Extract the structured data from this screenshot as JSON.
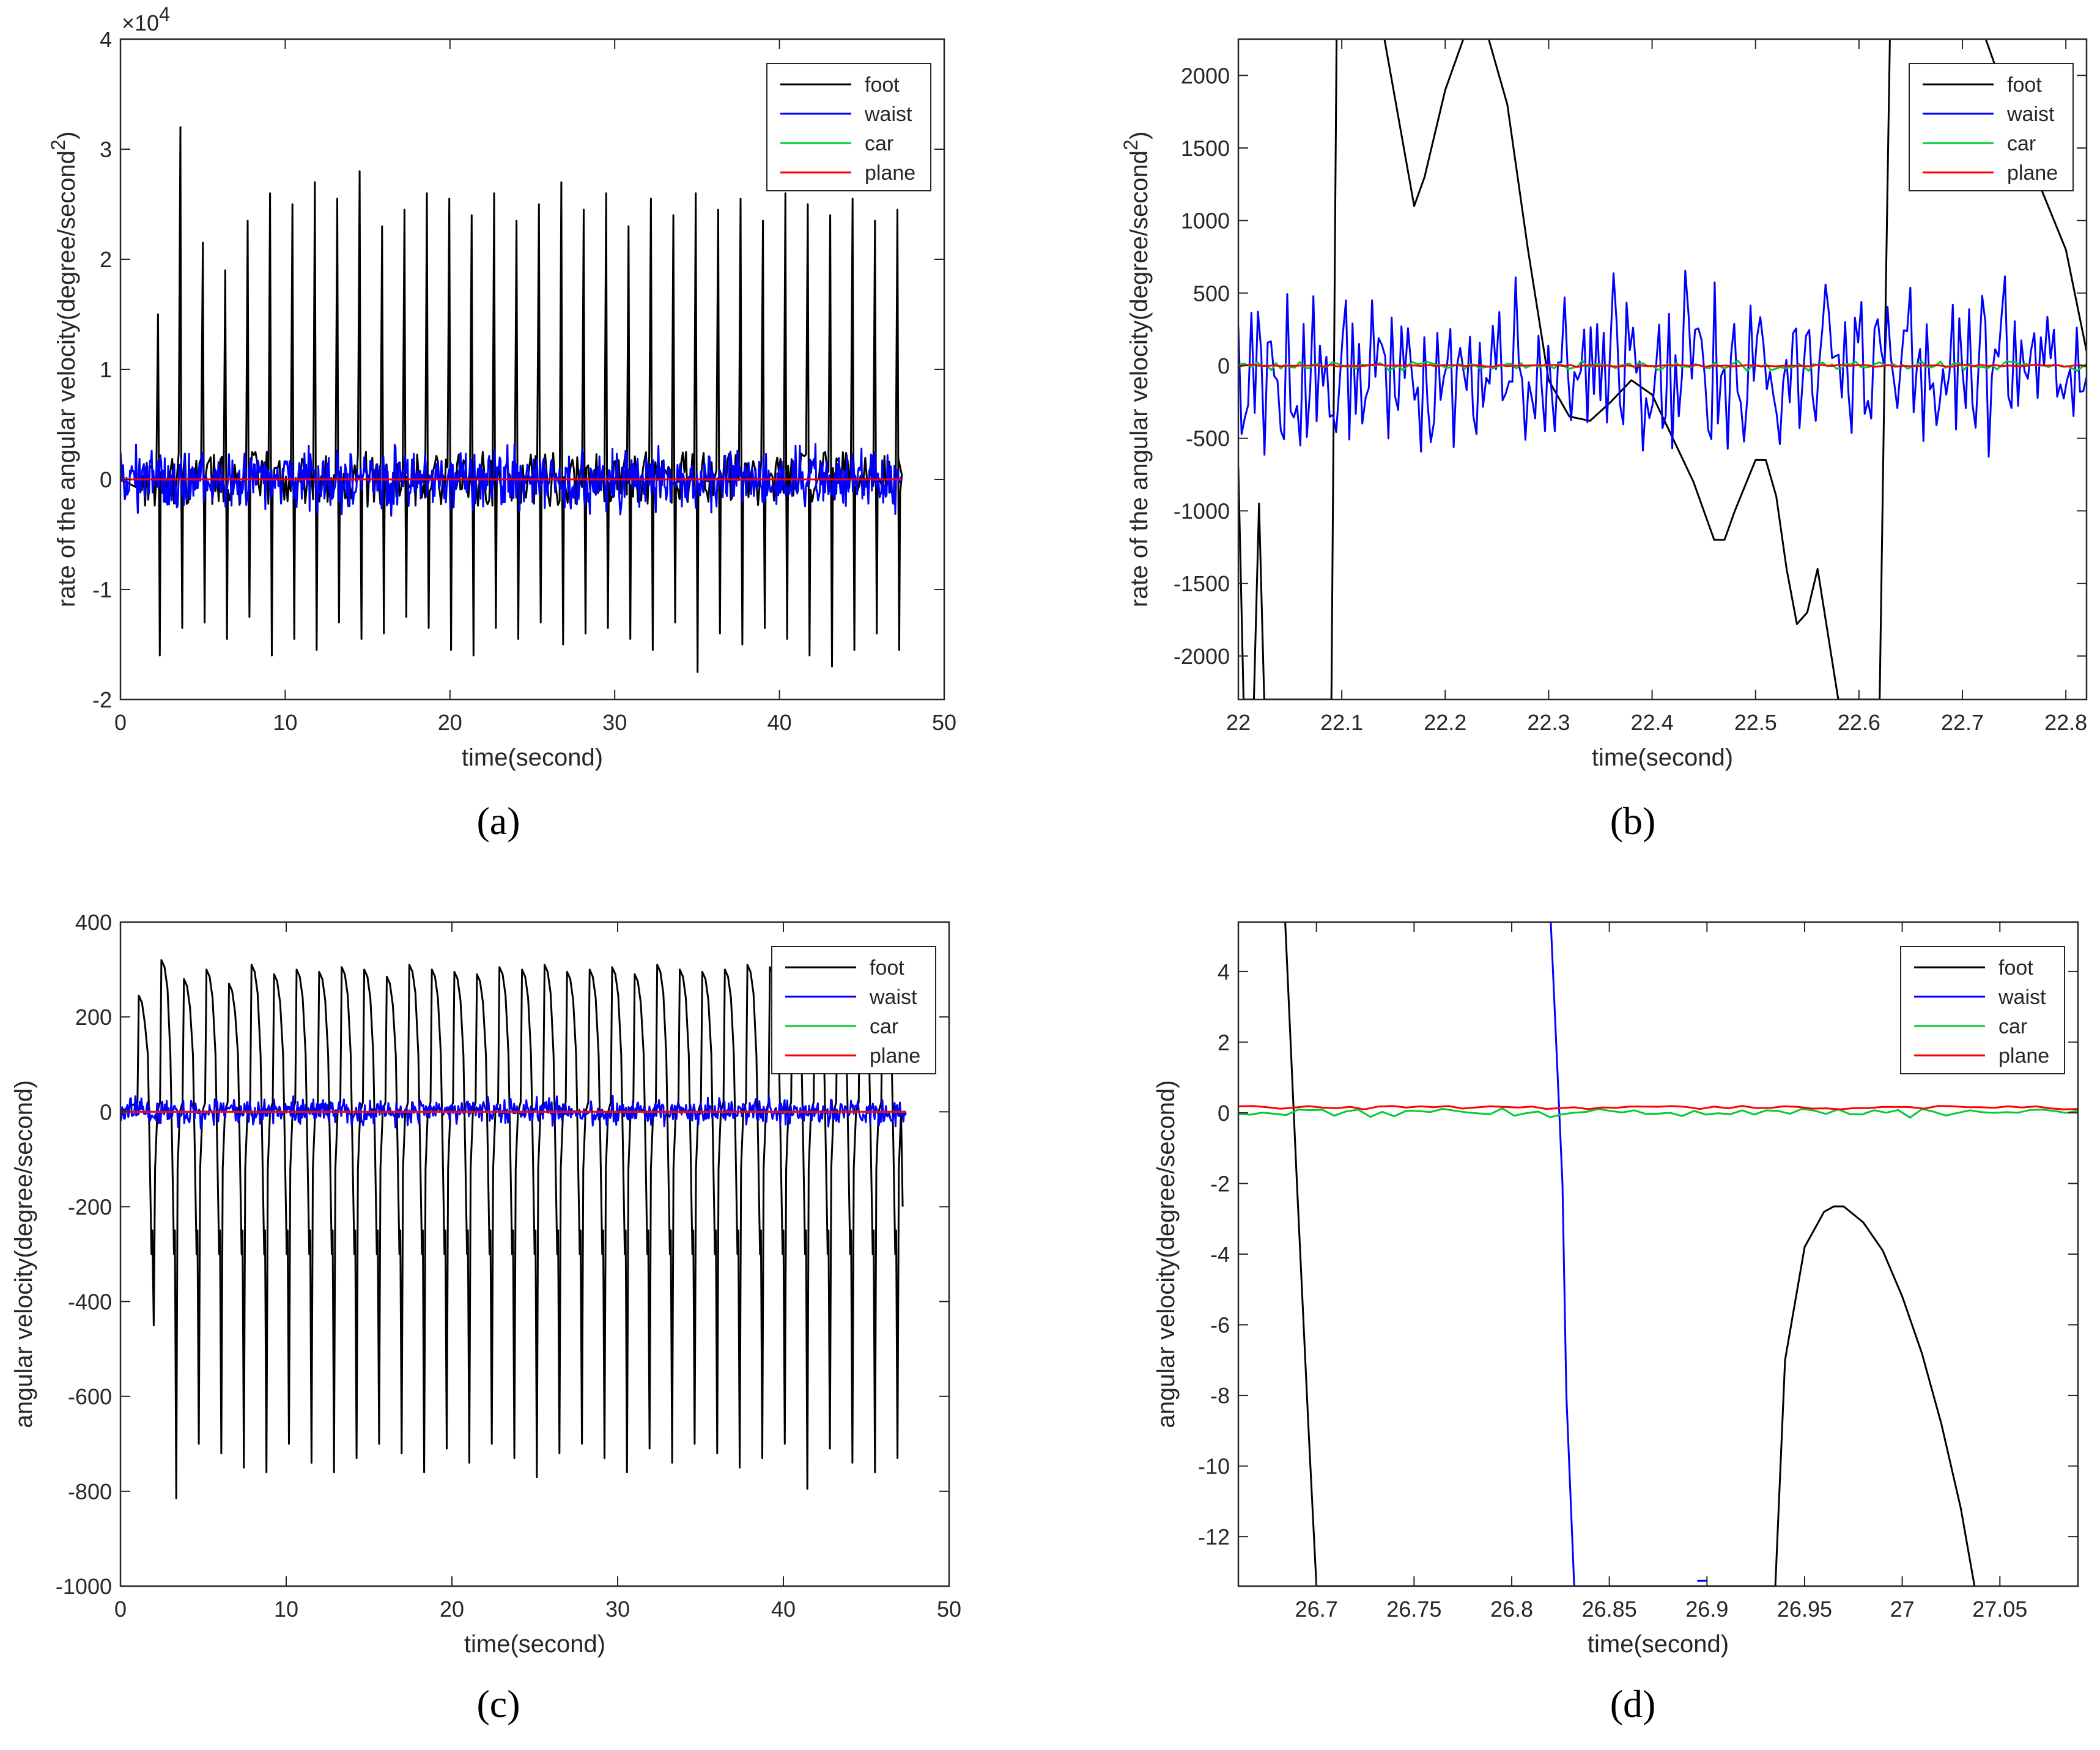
{
  "chart_data": [
    {
      "id": "a",
      "type": "line",
      "caption": "(a)",
      "ylabel": "rate of the angular velocity(degree/second",
      "ylabel_superscript": "2",
      "ylabel_close": ")",
      "xlabel": "time(second)",
      "exponent_base": "×10",
      "exponent_power": "4",
      "xlim": [
        0,
        50
      ],
      "ylim": [
        -2,
        4
      ],
      "xticks": [
        0,
        10,
        20,
        30,
        40,
        50
      ],
      "yticks": [
        -2,
        -1,
        0,
        1,
        2,
        3,
        4
      ],
      "xtick_labels": [
        "0",
        "10",
        "20",
        "30",
        "40",
        "50"
      ],
      "ytick_labels": [
        "-2",
        "-1",
        "0",
        "1",
        "2",
        "3",
        "4"
      ],
      "legend": [
        "foot",
        "waist",
        "car",
        "plane"
      ],
      "legend_position": "top-right",
      "series": [
        {
          "name": "foot",
          "color": "#000000",
          "pattern": {
            "kind": "spikes",
            "t0": 1.3,
            "period": 1.36,
            "t_end": 47.2,
            "base_noise": 0.25,
            "peaks": [
              1.5,
              3.2,
              2.15,
              1.9,
              2.35,
              2.6,
              2.5,
              2.7,
              2.55,
              2.8,
              2.3,
              2.45,
              2.6,
              2.55,
              2.4,
              2.6,
              2.35,
              2.5,
              2.7,
              2.45,
              2.6,
              2.3,
              2.55,
              2.4,
              2.6,
              2.45,
              2.55,
              2.35,
              2.6,
              2.5,
              2.4,
              2.55,
              2.35,
              2.45,
              2.3
            ],
            "troughs": [
              -1.6,
              -1.35,
              -1.3,
              -1.45,
              -1.25,
              -1.6,
              -1.45,
              -1.55,
              -1.3,
              -1.45,
              -1.4,
              -1.25,
              -1.35,
              -1.55,
              -1.6,
              -1.35,
              -1.45,
              -1.3,
              -1.5,
              -1.4,
              -1.35,
              -1.45,
              -1.55,
              -1.3,
              -1.75,
              -1.4,
              -1.5,
              -1.35,
              -1.45,
              -1.6,
              -1.7,
              -1.55,
              -1.4,
              -1.55,
              -1.35
            ]
          }
        },
        {
          "name": "waist",
          "color": "#0000ff",
          "pattern": {
            "kind": "noise",
            "t_start": 0,
            "t_end": 47.4,
            "amp": 0.35,
            "n": 900
          }
        },
        {
          "name": "car",
          "color": "#00cc33",
          "pattern": {
            "kind": "flat",
            "value": 0,
            "t_start": 0,
            "t_end": 47.4
          }
        },
        {
          "name": "plane",
          "color": "#ff0000",
          "pattern": {
            "kind": "flat",
            "value": 0,
            "t_start": 0,
            "t_end": 47.4
          }
        }
      ]
    },
    {
      "id": "b",
      "type": "line",
      "caption": "(b)",
      "ylabel": "rate of the angular velocity(degree/second",
      "ylabel_superscript": "2",
      "ylabel_close": ")",
      "xlabel": "time(second)",
      "xlim": [
        22,
        22.82
      ],
      "ylim": [
        -2300,
        2250
      ],
      "xticks": [
        22,
        22.1,
        22.2,
        22.3,
        22.4,
        22.5,
        22.6,
        22.7,
        22.8
      ],
      "yticks": [
        -2000,
        -1500,
        -1000,
        -500,
        0,
        500,
        1000,
        1500,
        2000
      ],
      "xtick_labels": [
        "22",
        "22.1",
        "22.2",
        "22.3",
        "22.4",
        "22.5",
        "22.6",
        "22.7",
        "22.8"
      ],
      "ytick_labels": [
        "-2000",
        "-1500",
        "-1000",
        "-500",
        "0",
        "500",
        "1000",
        "1500",
        "2000"
      ],
      "legend": [
        "foot",
        "waist",
        "car",
        "plane"
      ],
      "legend_position": "top-right",
      "series": [
        {
          "name": "foot",
          "color": "#000000",
          "x": [
            22.0,
            22.005,
            22.01,
            22.015,
            22.02,
            22.025,
            22.03,
            22.09,
            22.095,
            22.1,
            22.12,
            22.14,
            22.16,
            22.17,
            22.18,
            22.2,
            22.22,
            22.24,
            22.26,
            22.28,
            22.3,
            22.32,
            22.34,
            22.36,
            22.38,
            22.4,
            22.42,
            22.44,
            22.46,
            22.47,
            22.48,
            22.5,
            22.51,
            22.52,
            22.53,
            22.54,
            22.55,
            22.56,
            22.58,
            22.6,
            22.62,
            22.625,
            22.63,
            22.64,
            22.65,
            22.66,
            22.665,
            22.67,
            22.68,
            22.72,
            22.76,
            22.8,
            22.82
          ],
          "y": [
            -700,
            -2300,
            -2300,
            -2300,
            -950,
            -2300,
            -2300,
            -2300,
            2300,
            2300,
            2300,
            2300,
            1500,
            1100,
            1300,
            1900,
            2300,
            2300,
            1800,
            800,
            -100,
            -350,
            -380,
            -250,
            -100,
            -200,
            -500,
            -800,
            -1200,
            -1200,
            -1000,
            -650,
            -650,
            -900,
            -1400,
            -1780,
            -1700,
            -1400,
            -2300,
            -2300,
            -2300,
            100,
            2300,
            2300,
            2300,
            2300,
            2300,
            2300,
            2300,
            2300,
            1500,
            800,
            100
          ]
        },
        {
          "name": "waist",
          "color": "#0000ff",
          "pattern": {
            "kind": "noise",
            "t_start": 22.0,
            "t_end": 22.82,
            "amp": 700,
            "n": 260
          }
        },
        {
          "name": "car",
          "color": "#00cc33",
          "pattern": {
            "kind": "noise",
            "t_start": 22.0,
            "t_end": 22.82,
            "amp": 40,
            "n": 180
          }
        },
        {
          "name": "plane",
          "color": "#ff0000",
          "pattern": {
            "kind": "noise",
            "t_start": 22.0,
            "t_end": 22.82,
            "amp": 10,
            "n": 120
          }
        }
      ]
    },
    {
      "id": "c",
      "type": "line",
      "caption": "(c)",
      "ylabel": "angular velocity(degree/second)",
      "xlabel": "time(second)",
      "xlim": [
        0,
        50
      ],
      "ylim": [
        -1000,
        400
      ],
      "xticks": [
        0,
        10,
        20,
        30,
        40,
        50
      ],
      "yticks": [
        -1000,
        -800,
        -600,
        -400,
        -200,
        0,
        200,
        400
      ],
      "xtick_labels": [
        "0",
        "10",
        "20",
        "30",
        "40",
        "50"
      ],
      "ytick_labels": [
        "-1000",
        "-800",
        "-600",
        "-400",
        "-200",
        "0",
        "200",
        "400"
      ],
      "legend": [
        "foot",
        "waist",
        "car",
        "plane"
      ],
      "legend_position": "top-right",
      "series": [
        {
          "name": "foot",
          "color": "#000000",
          "pattern": {
            "kind": "gait",
            "t0": 1.0,
            "period": 1.36,
            "t_end": 47.2,
            "peaks": [
              245,
              320,
              280,
              300,
              270,
              310,
              290,
              300,
              295,
              305,
              300,
              285,
              310,
              300,
              295,
              290,
              305,
              300,
              310,
              295,
              300,
              305,
              290,
              310,
              300,
              295,
              300,
              310,
              305,
              300,
              295,
              300,
              305,
              290,
              295
            ],
            "troughs": [
              -450,
              -815,
              -700,
              -720,
              -750,
              -760,
              -700,
              -740,
              -760,
              -730,
              -700,
              -720,
              -760,
              -710,
              -740,
              -700,
              -730,
              -770,
              -720,
              -700,
              -730,
              -760,
              -710,
              -740,
              -700,
              -720,
              -750,
              -730,
              -700,
              -795,
              -710,
              -740,
              -760,
              -730,
              -670
            ]
          }
        },
        {
          "name": "waist",
          "color": "#0000ff",
          "pattern": {
            "kind": "noise",
            "t_start": 0,
            "t_end": 47.4,
            "amp": 35,
            "n": 900
          }
        },
        {
          "name": "car",
          "color": "#00cc33",
          "pattern": {
            "kind": "flat",
            "value": 0,
            "t_start": 0,
            "t_end": 47.4
          }
        },
        {
          "name": "plane",
          "color": "#ff0000",
          "pattern": {
            "kind": "flat",
            "value": 0,
            "t_start": 0,
            "t_end": 47.4
          }
        }
      ]
    },
    {
      "id": "d",
      "type": "line",
      "caption": "(d)",
      "ylabel": "angular velocity(degree/second)",
      "xlabel": "time(second)",
      "xlim": [
        26.66,
        27.09
      ],
      "ylim": [
        -13.4,
        5.4
      ],
      "xticks": [
        26.7,
        26.75,
        26.8,
        26.85,
        26.9,
        26.95,
        27,
        27.05
      ],
      "yticks": [
        -12,
        -10,
        -8,
        -6,
        -4,
        -2,
        0,
        2,
        4
      ],
      "xtick_labels": [
        "26.7",
        "26.75",
        "26.8",
        "26.85",
        "26.9",
        "26.95",
        "27",
        "27.05"
      ],
      "ytick_labels": [
        "-12",
        "-10",
        "-8",
        "-6",
        "-4",
        "-2",
        "0",
        "2",
        "4"
      ],
      "legend": [
        "foot",
        "waist",
        "car",
        "plane"
      ],
      "legend_position": "top-right",
      "series": [
        {
          "name": "foot",
          "color": "#000000",
          "x": [
            26.684,
            26.69,
            26.696,
            26.7,
            26.935,
            26.94,
            26.95,
            26.96,
            26.965,
            26.97,
            26.98,
            26.99,
            27.0,
            27.01,
            27.02,
            27.03,
            27.037
          ],
          "y": [
            5.4,
            -2,
            -9,
            -13.4,
            -13.4,
            -7,
            -3.8,
            -2.8,
            -2.65,
            -2.65,
            -3.1,
            -3.9,
            -5.2,
            -6.8,
            -8.8,
            -11.2,
            -13.4
          ]
        },
        {
          "name": "waist",
          "color": "#0000ff",
          "x": [
            26.82,
            26.826,
            26.828,
            26.832
          ],
          "y": [
            5.4,
            -2,
            -8,
            -13.4
          ]
        },
        {
          "name": "waist",
          "color": "#0000ff",
          "x": [
            26.895,
            26.9
          ],
          "y": [
            -13.25,
            -13.25
          ]
        },
        {
          "name": "car",
          "color": "#00cc33",
          "pattern": {
            "kind": "noise",
            "t_start": 26.66,
            "t_end": 27.09,
            "amp": 0.18,
            "n": 70,
            "offset": 0.02
          }
        },
        {
          "name": "plane",
          "color": "#ff0000",
          "pattern": {
            "kind": "noise",
            "t_start": 26.66,
            "t_end": 27.09,
            "amp": 0.06,
            "n": 60,
            "offset": 0.15
          }
        }
      ]
    }
  ]
}
